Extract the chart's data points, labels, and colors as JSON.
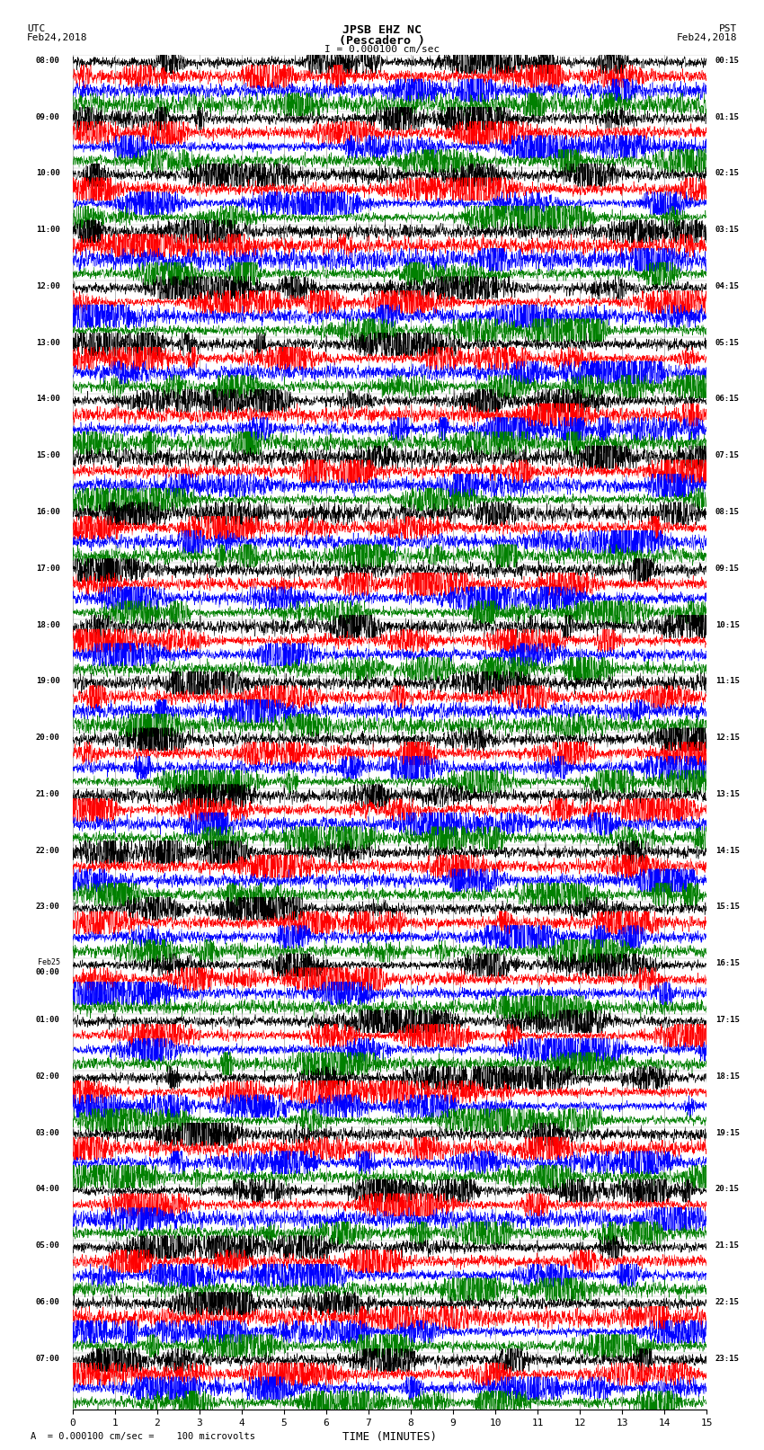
{
  "title_line1": "JPSB EHZ NC",
  "title_line2": "(Pescadero )",
  "scale_label": "I = 0.000100 cm/sec",
  "utc_label": "UTC\nFeb24,2018",
  "pst_label": "PST\nFeb24,2018",
  "bottom_label": "A  = 0.000100 cm/sec =    100 microvolts",
  "xlabel": "TIME (MINUTES)",
  "left_times": [
    "08:00",
    "09:00",
    "10:00",
    "11:00",
    "12:00",
    "13:00",
    "14:00",
    "15:00",
    "16:00",
    "17:00",
    "18:00",
    "19:00",
    "20:00",
    "21:00",
    "22:00",
    "23:00",
    "Feb25\n00:00",
    "01:00",
    "02:00",
    "03:00",
    "04:00",
    "05:00",
    "06:00",
    "07:00"
  ],
  "right_times": [
    "00:15",
    "01:15",
    "02:15",
    "03:15",
    "04:15",
    "05:15",
    "06:15",
    "07:15",
    "08:15",
    "09:15",
    "10:15",
    "11:15",
    "12:15",
    "13:15",
    "14:15",
    "15:15",
    "16:15",
    "17:15",
    "18:15",
    "19:15",
    "20:15",
    "21:15",
    "22:15",
    "23:15"
  ],
  "colors": [
    "black",
    "red",
    "blue",
    "green"
  ],
  "n_rows": 24,
  "traces_per_row": 4,
  "minutes_per_row": 15,
  "background_color": "white",
  "fig_width": 8.5,
  "fig_height": 16.13
}
